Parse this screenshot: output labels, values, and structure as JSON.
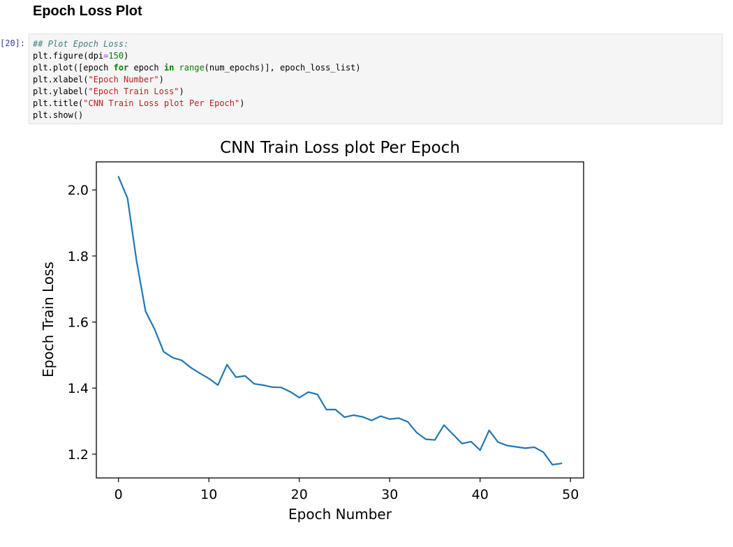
{
  "notebook": {
    "heading": "Epoch Loss Plot",
    "cell_prompt": "[20]:",
    "code_lines": [
      [
        {
          "t": "## Plot Epoch Loss:",
          "c": "cm"
        }
      ],
      [
        {
          "t": "plt.figure(dpi",
          "c": ""
        },
        {
          "t": "=",
          "c": "op"
        },
        {
          "t": "150",
          "c": "num"
        },
        {
          "t": ")",
          "c": ""
        }
      ],
      [
        {
          "t": "plt.plot([epoch ",
          "c": ""
        },
        {
          "t": "for",
          "c": "kw"
        },
        {
          "t": " epoch ",
          "c": ""
        },
        {
          "t": "in",
          "c": "kw"
        },
        {
          "t": " ",
          "c": ""
        },
        {
          "t": "range",
          "c": "bi"
        },
        {
          "t": "(num_epochs)], epoch_loss_list)",
          "c": ""
        }
      ],
      [
        {
          "t": "plt.xlabel(",
          "c": ""
        },
        {
          "t": "\"Epoch Number\"",
          "c": "str"
        },
        {
          "t": ")",
          "c": ""
        }
      ],
      [
        {
          "t": "plt.ylabel(",
          "c": ""
        },
        {
          "t": "\"Epoch Train Loss\"",
          "c": "str"
        },
        {
          "t": ")",
          "c": ""
        }
      ],
      [
        {
          "t": "plt.title(",
          "c": ""
        },
        {
          "t": "\"CNN Train Loss plot Per Epoch\"",
          "c": "str"
        },
        {
          "t": ")",
          "c": ""
        }
      ],
      [
        {
          "t": "plt.show()",
          "c": ""
        }
      ]
    ]
  },
  "chart_data": {
    "type": "line",
    "title": "CNN Train Loss plot Per Epoch",
    "xlabel": "Epoch Number",
    "ylabel": "Epoch Train Loss",
    "xlim": [
      -2.45,
      51.45
    ],
    "ylim": [
      1.128,
      2.085
    ],
    "xticks": [
      0,
      10,
      20,
      30,
      40,
      50
    ],
    "yticks": [
      1.2,
      1.4,
      1.6,
      1.8,
      2.0
    ],
    "xtick_labels": [
      "0",
      "10",
      "20",
      "30",
      "40",
      "50"
    ],
    "ytick_labels": [
      "1.2",
      "1.4",
      "1.6",
      "1.8",
      "2.0"
    ],
    "grid": false,
    "line_color": "#1f77b4",
    "series": [
      {
        "x": [
          0,
          1,
          2,
          3,
          4,
          5,
          6,
          7,
          8,
          9,
          10,
          11,
          12,
          13,
          14,
          15,
          16,
          17,
          18,
          19,
          20,
          21,
          22,
          23,
          24,
          25,
          26,
          27,
          28,
          29,
          30,
          31,
          32,
          33,
          34,
          35,
          36,
          37,
          38,
          39,
          40,
          41,
          42,
          43,
          44,
          45,
          46,
          47,
          48,
          49
        ],
        "values": [
          2.04,
          1.975,
          1.785,
          1.632,
          1.578,
          1.51,
          1.492,
          1.484,
          1.462,
          1.445,
          1.429,
          1.409,
          1.471,
          1.433,
          1.437,
          1.413,
          1.409,
          1.403,
          1.402,
          1.389,
          1.371,
          1.388,
          1.381,
          1.335,
          1.335,
          1.312,
          1.318,
          1.313,
          1.302,
          1.315,
          1.306,
          1.309,
          1.298,
          1.265,
          1.245,
          1.243,
          1.288,
          1.26,
          1.232,
          1.238,
          1.212,
          1.272,
          1.236,
          1.226,
          1.222,
          1.218,
          1.221,
          1.206,
          1.168,
          1.172
        ]
      }
    ]
  }
}
